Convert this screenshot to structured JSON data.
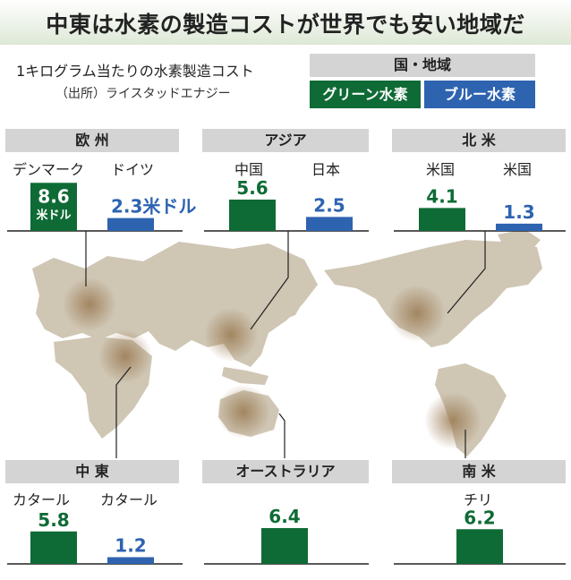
{
  "header": {
    "title": "中東は水素の製造コストが世界でも安い地域だ",
    "subtitle": "1キログラム当たりの水素製造コスト",
    "source": "（出所）ライスタッドエナジー"
  },
  "legend": {
    "title": "国・地域",
    "green_label": "グリーン水素",
    "blue_label": "ブルー水素"
  },
  "colors": {
    "green": "#0f6b35",
    "blue": "#2e63b0",
    "map": "#cfc6b4",
    "header_bg": "#d4d4d4"
  },
  "chart_data": {
    "type": "bar",
    "title": "中東は水素の製造コストが世界でも安い地域だ",
    "subtitle": "1キログラム当たりの水素製造コスト",
    "unit": "米ドル",
    "series_names": [
      "グリーン水素",
      "ブルー水素"
    ],
    "regions": [
      {
        "name": "欧 州",
        "bars": [
          {
            "country": "デンマーク",
            "series": "green",
            "value": 8.6,
            "label": "8.6",
            "unit_label": "米ドル"
          },
          {
            "country": "ドイツ",
            "series": "blue",
            "value": 2.3,
            "label": "2.3米ドル"
          }
        ]
      },
      {
        "name": "アジア",
        "bars": [
          {
            "country": "中国",
            "series": "green",
            "value": 5.6,
            "label": "5.6"
          },
          {
            "country": "日本",
            "series": "blue",
            "value": 2.5,
            "label": "2.5"
          }
        ]
      },
      {
        "name": "北 米",
        "bars": [
          {
            "country": "米国",
            "series": "green",
            "value": 4.1,
            "label": "4.1"
          },
          {
            "country": "米国",
            "series": "blue",
            "value": 1.3,
            "label": "1.3"
          }
        ]
      },
      {
        "name": "中 東",
        "bars": [
          {
            "country": "カタール",
            "series": "green",
            "value": 5.8,
            "label": "5.8"
          },
          {
            "country": "カタール",
            "series": "blue",
            "value": 1.2,
            "label": "1.2"
          }
        ]
      },
      {
        "name": "オーストラリア",
        "bars": [
          {
            "country": "",
            "series": "green",
            "value": 6.4,
            "label": "6.4"
          }
        ]
      },
      {
        "name": "南 米",
        "bars": [
          {
            "country": "チリ",
            "series": "green",
            "value": 6.2,
            "label": "6.2"
          }
        ]
      }
    ]
  }
}
